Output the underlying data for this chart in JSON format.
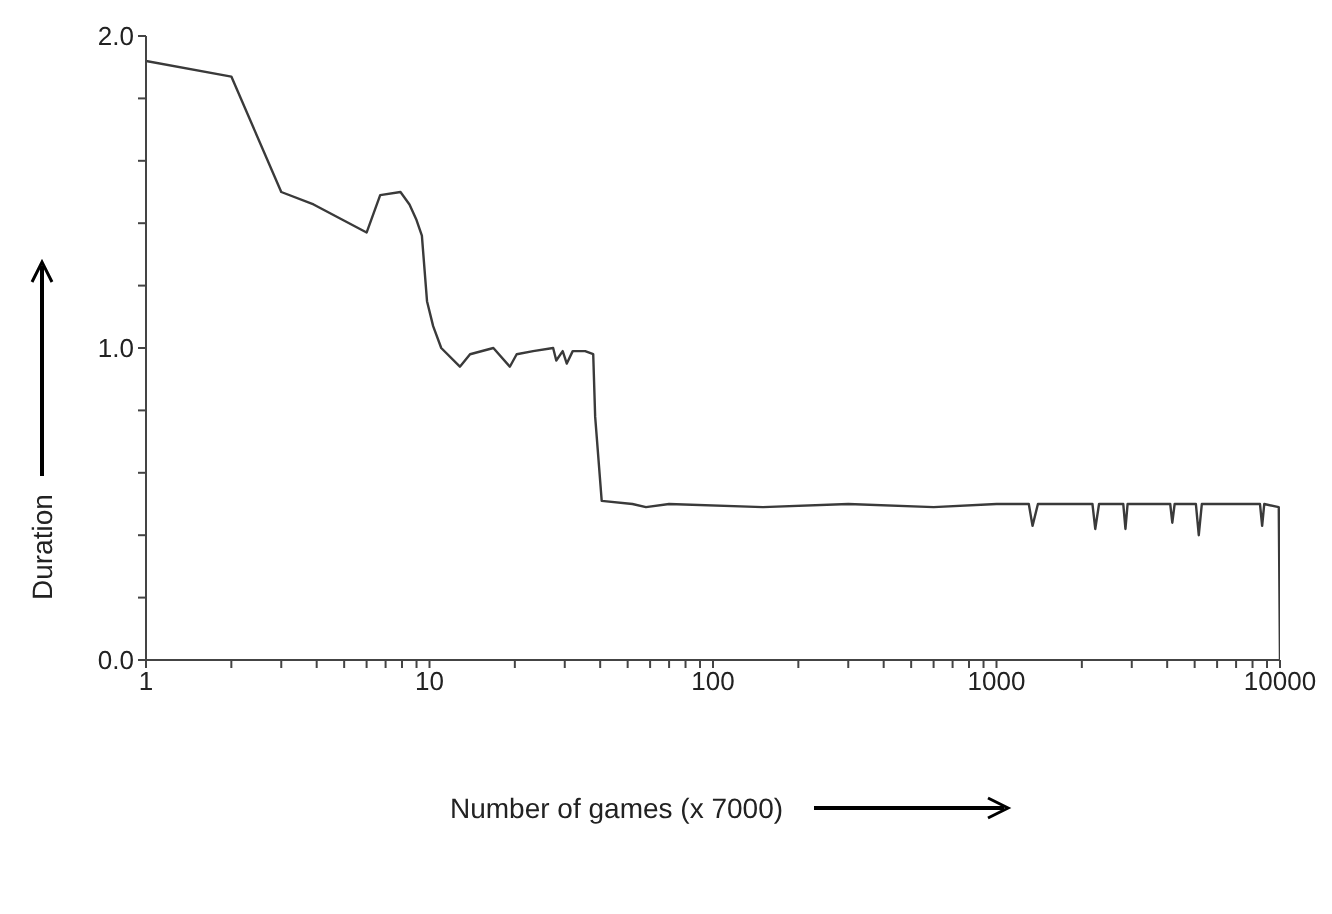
{
  "chart_data": {
    "type": "line",
    "xlabel": "Number of games (x 7000)",
    "ylabel": "Duration",
    "log": "x",
    "grid": false,
    "legend": false,
    "marker": "none",
    "line_style": "solid",
    "xlim": [
      1,
      10000
    ],
    "ylim": [
      0,
      2
    ],
    "xticks": [
      1,
      {
        "value": 2,
        "label": null
      },
      {
        "value": 3,
        "label": null
      },
      {
        "value": 4,
        "label": null
      },
      {
        "value": 5,
        "label": null
      },
      {
        "value": 6,
        "label": null
      },
      {
        "value": 7,
        "label": null
      },
      {
        "value": 8,
        "label": null
      },
      {
        "value": 9,
        "label": null
      },
      10,
      {
        "value": 20,
        "label": null
      },
      {
        "value": 30,
        "label": null
      },
      {
        "value": 40,
        "label": null
      },
      {
        "value": 50,
        "label": null
      },
      {
        "value": 60,
        "label": null
      },
      {
        "value": 70,
        "label": null
      },
      {
        "value": 80,
        "label": null
      },
      {
        "value": 90,
        "label": null
      },
      100,
      {
        "value": 200,
        "label": null
      },
      {
        "value": 300,
        "label": null
      },
      {
        "value": 400,
        "label": null
      },
      {
        "value": 500,
        "label": null
      },
      {
        "value": 600,
        "label": null
      },
      {
        "value": 700,
        "label": null
      },
      {
        "value": 800,
        "label": null
      },
      {
        "value": 900,
        "label": null
      },
      1000,
      {
        "value": 2000,
        "label": null
      },
      {
        "value": 3000,
        "label": null
      },
      {
        "value": 4000,
        "label": null
      },
      {
        "value": 5000,
        "label": null
      },
      {
        "value": 6000,
        "label": null
      },
      {
        "value": 7000,
        "label": null
      },
      {
        "value": 8000,
        "label": null
      },
      {
        "value": 9000,
        "label": null
      },
      10000
    ],
    "yticks": [
      {
        "value": 0,
        "label": "0.0"
      },
      {
        "value": 0.2,
        "label": null
      },
      {
        "value": 0.4,
        "label": null
      },
      {
        "value": 0.6,
        "label": null
      },
      {
        "value": 0.8,
        "label": null
      },
      {
        "value": 1,
        "label": "1.0"
      },
      {
        "value": 1.2,
        "label": null
      },
      {
        "value": 1.4,
        "label": null
      },
      {
        "value": 1.6,
        "label": null
      },
      {
        "value": 1.8,
        "label": null
      },
      {
        "value": 2,
        "label": "2.0"
      }
    ],
    "series": [
      {
        "color": "#3a3a3a",
        "x": [
          1,
          2,
          3,
          3.9,
          6,
          6.7,
          7.9,
          8.5,
          9,
          9.4,
          9.8,
          10.3,
          11,
          12.8,
          13.9,
          16.8,
          19.2,
          20.3,
          23.2,
          27.3,
          28,
          29.5,
          30.5,
          32,
          35.4,
          37.8,
          38.4,
          40.5,
          52,
          58,
          70,
          150,
          300,
          600,
          1000,
          1300,
          1340,
          1400,
          2180,
          2230,
          2300,
          2800,
          2850,
          2900,
          4100,
          4170,
          4250,
          5050,
          5170,
          5300,
          8500,
          8650,
          8800,
          9900,
          10000
        ],
        "values": [
          1.92,
          1.87,
          1.5,
          1.46,
          1.37,
          1.49,
          1.5,
          1.46,
          1.41,
          1.36,
          1.15,
          1.07,
          1.0,
          0.94,
          0.98,
          1.0,
          0.94,
          0.98,
          0.99,
          1.0,
          0.96,
          0.99,
          0.95,
          0.99,
          0.99,
          0.98,
          0.78,
          0.51,
          0.5,
          0.49,
          0.5,
          0.49,
          0.5,
          0.49,
          0.5,
          0.5,
          0.43,
          0.5,
          0.5,
          0.42,
          0.5,
          0.5,
          0.42,
          0.5,
          0.5,
          0.44,
          0.5,
          0.5,
          0.4,
          0.5,
          0.5,
          0.43,
          0.5,
          0.49,
          0
        ]
      }
    ]
  }
}
